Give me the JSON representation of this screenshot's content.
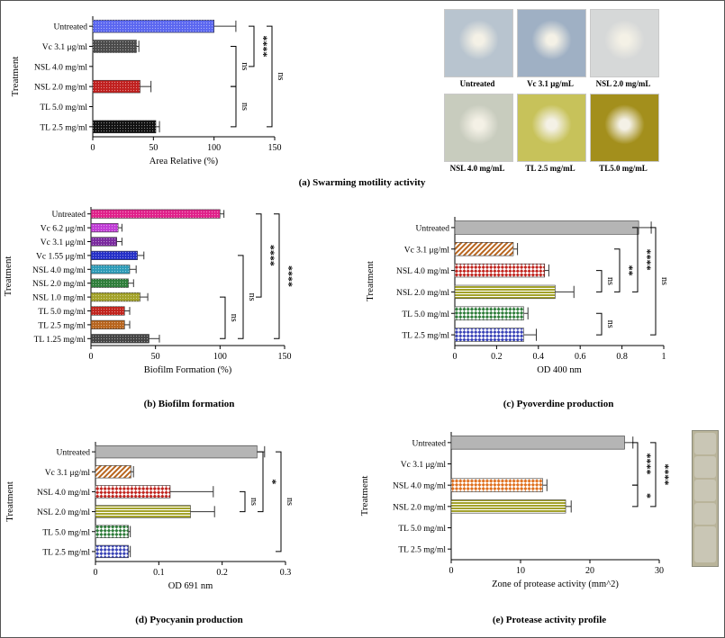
{
  "panels": {
    "a": {
      "caption": "(a) Swarming motility activity"
    },
    "b": {
      "caption": "(b) Biofilm formation"
    },
    "c": {
      "caption": "(c) Pyoverdine production"
    },
    "d": {
      "caption": "(d) Pyocyanin production"
    },
    "e": {
      "caption": "(e) Protease activity profile"
    }
  },
  "photos": [
    {
      "label": "Untreated",
      "color": "#b8c4cf"
    },
    {
      "label": "Vc 3.1 μg/mL",
      "color": "#9fb0c4"
    },
    {
      "label": "NSL 2.0 mg/mL",
      "color": "#d6d8d8"
    },
    {
      "label": "NSL 4.0 mg/mL",
      "color": "#c8ccbe"
    },
    {
      "label": "TL 2.5 mg/mL",
      "color": "#c7c25a"
    },
    {
      "label": "TL5.0 mg/mL",
      "color": "#a38f1c"
    }
  ],
  "chart_data": [
    {
      "id": "a",
      "type": "bar",
      "orientation": "horizontal",
      "categories": [
        "Untreated",
        "Vc 3.1 μg/ml",
        "NSL 4.0 mg/ml",
        "NSL 2.0 mg/ml",
        "TL 5.0 mg/ml",
        "TL 2.5 mg/ml"
      ],
      "values": [
        100,
        36,
        0,
        39,
        0,
        52
      ],
      "errors": [
        18,
        2,
        0,
        9,
        0,
        3
      ],
      "colors": [
        "#5b67f0",
        "#4a4a4a",
        "#ffffff",
        "#c0201f",
        "#ffffff",
        "#111111"
      ],
      "xlabel": "Area Relative (%)",
      "ylabel": "Treatment",
      "xlim": [
        0,
        150
      ],
      "xticks": [
        0,
        50,
        100,
        150
      ],
      "brackets": [
        {
          "from": 0,
          "to": 2,
          "label": "****",
          "level": 2
        },
        {
          "from": 1,
          "to": 3,
          "label": "ns",
          "level": 1
        },
        {
          "from": 3,
          "to": 5,
          "label": "ns",
          "level": 1
        },
        {
          "from": 0,
          "to": 5,
          "label": "ns",
          "level": 3
        }
      ]
    },
    {
      "id": "b",
      "type": "bar",
      "orientation": "horizontal",
      "categories": [
        "Untreated",
        "Vc 6.2 μg/ml",
        "Vc 3.1 μg/ml",
        "Vc 1.55 μg/ml",
        "NSL 4.0 mg/ml",
        "NSL 2.0 mg/ml",
        "NSL 1.0 mg/ml",
        "TL 5.0 mg/ml",
        "TL 2.5 mg/ml",
        "TL 1.25 mg/ml"
      ],
      "values": [
        100,
        21,
        20,
        36,
        30,
        29,
        38,
        26,
        26,
        45
      ],
      "errors": [
        3,
        3,
        4,
        5,
        5,
        4,
        6,
        4,
        4,
        8
      ],
      "colors": [
        "#e0218a",
        "#c13cd6",
        "#7a2a9e",
        "#2530c8",
        "#2f9cb8",
        "#2e7d3a",
        "#a3a22a",
        "#c1241e",
        "#b8651e",
        "#444444"
      ],
      "xlabel": "Biofilm Formation (%)",
      "ylabel": "Treatment",
      "xlim": [
        0,
        150
      ],
      "xticks": [
        0,
        50,
        100,
        150
      ],
      "brackets": [
        {
          "from": 6,
          "to": 9,
          "label": "ns",
          "level": 1
        },
        {
          "from": 3,
          "to": 9,
          "label": "ns",
          "level": 2
        },
        {
          "from": 0,
          "to": 6,
          "label": "****",
          "level": 3
        },
        {
          "from": 0,
          "to": 9,
          "label": "****",
          "level": 4
        }
      ]
    },
    {
      "id": "c",
      "type": "bar",
      "orientation": "horizontal",
      "categories": [
        "Untreated",
        "Vc 3.1 μg/ml",
        "NSL 4.0 mg/ml",
        "NSL 2.0 mg/ml",
        "TL 5.0 mg/ml",
        "TL 2.5 mg/ml"
      ],
      "values": [
        0.88,
        0.28,
        0.43,
        0.48,
        0.33,
        0.33
      ],
      "errors": [
        0.06,
        0.02,
        0.02,
        0.09,
        0.02,
        0.06
      ],
      "colors": [
        "#b5b5b5",
        "#b8651e",
        "#c1241e",
        "#a3a22a",
        "#2e7d3a",
        "#3a44b8"
      ],
      "patterns": [
        "solid",
        "hatch",
        "check",
        "hlines",
        "check",
        "check"
      ],
      "xlabel": "OD 400 nm",
      "ylabel": "Treatment",
      "xlim": [
        0,
        1.0
      ],
      "xticks": [
        0.0,
        0.2,
        0.4,
        0.6,
        0.8,
        1.0
      ],
      "brackets": [
        {
          "from": 2,
          "to": 3,
          "label": "ns",
          "level": 1
        },
        {
          "from": 4,
          "to": 5,
          "label": "ns",
          "level": 1
        },
        {
          "from": 1,
          "to": 3,
          "label": "**",
          "level": 2
        },
        {
          "from": 0,
          "to": 3,
          "label": "****",
          "level": 3
        },
        {
          "from": 0,
          "to": 5,
          "label": "ns",
          "level": 4
        }
      ]
    },
    {
      "id": "d",
      "type": "bar",
      "orientation": "horizontal",
      "categories": [
        "Untreated",
        "Vc 3.1 μg/ml",
        "NSL 4.0 mg/ml",
        "NSL 2.0 mg/ml",
        "TL 5.0 mg/ml",
        "TL 2.5 mg/ml"
      ],
      "values": [
        0.255,
        0.056,
        0.118,
        0.15,
        0.052,
        0.052
      ],
      "errors": [
        0.012,
        0.004,
        0.068,
        0.038,
        0.003,
        0.003
      ],
      "colors": [
        "#b5b5b5",
        "#b8651e",
        "#c1241e",
        "#a3a22a",
        "#2e7d3a",
        "#3a44b8"
      ],
      "patterns": [
        "solid",
        "hatch",
        "check",
        "hlines",
        "check",
        "check"
      ],
      "xlabel": "OD 691 nm",
      "ylabel": "Treatment",
      "xlim": [
        0,
        0.3
      ],
      "xticks": [
        0.0,
        0.1,
        0.2,
        0.3
      ],
      "brackets": [
        {
          "from": 2,
          "to": 3,
          "label": "ns",
          "level": 1
        },
        {
          "from": 0,
          "to": 3,
          "label": "*",
          "level": 2
        },
        {
          "from": 0,
          "to": 5,
          "label": "ns",
          "level": 3
        }
      ]
    },
    {
      "id": "e",
      "type": "bar",
      "orientation": "horizontal",
      "categories": [
        "Untreated",
        "Vc 3.1 μg/ml",
        "NSL 4.0 mg/ml",
        "NSL 2.0 mg/ml",
        "TL 5.0 mg/ml",
        "TL 2.5 mg/ml"
      ],
      "values": [
        25,
        0,
        13.2,
        16.5,
        0,
        0
      ],
      "errors": [
        1.2,
        0,
        0.6,
        0.8,
        0,
        0
      ],
      "colors": [
        "#b5b5b5",
        "#ffffff",
        "#e0701e",
        "#a3a22a",
        "#ffffff",
        "#ffffff"
      ],
      "patterns": [
        "solid",
        "solid",
        "check",
        "hlines",
        "solid",
        "solid"
      ],
      "xlabel": "Zone of protease activity (mm^2)",
      "ylabel": "Treatment",
      "xlim": [
        0,
        30
      ],
      "xticks": [
        0,
        10,
        20,
        30
      ],
      "brackets": [
        {
          "from": 0,
          "to": 2,
          "label": "****",
          "level": 1
        },
        {
          "from": 2,
          "to": 3,
          "label": "*",
          "level": 1
        },
        {
          "from": 0,
          "to": 3,
          "label": "****",
          "level": 2
        }
      ]
    }
  ]
}
